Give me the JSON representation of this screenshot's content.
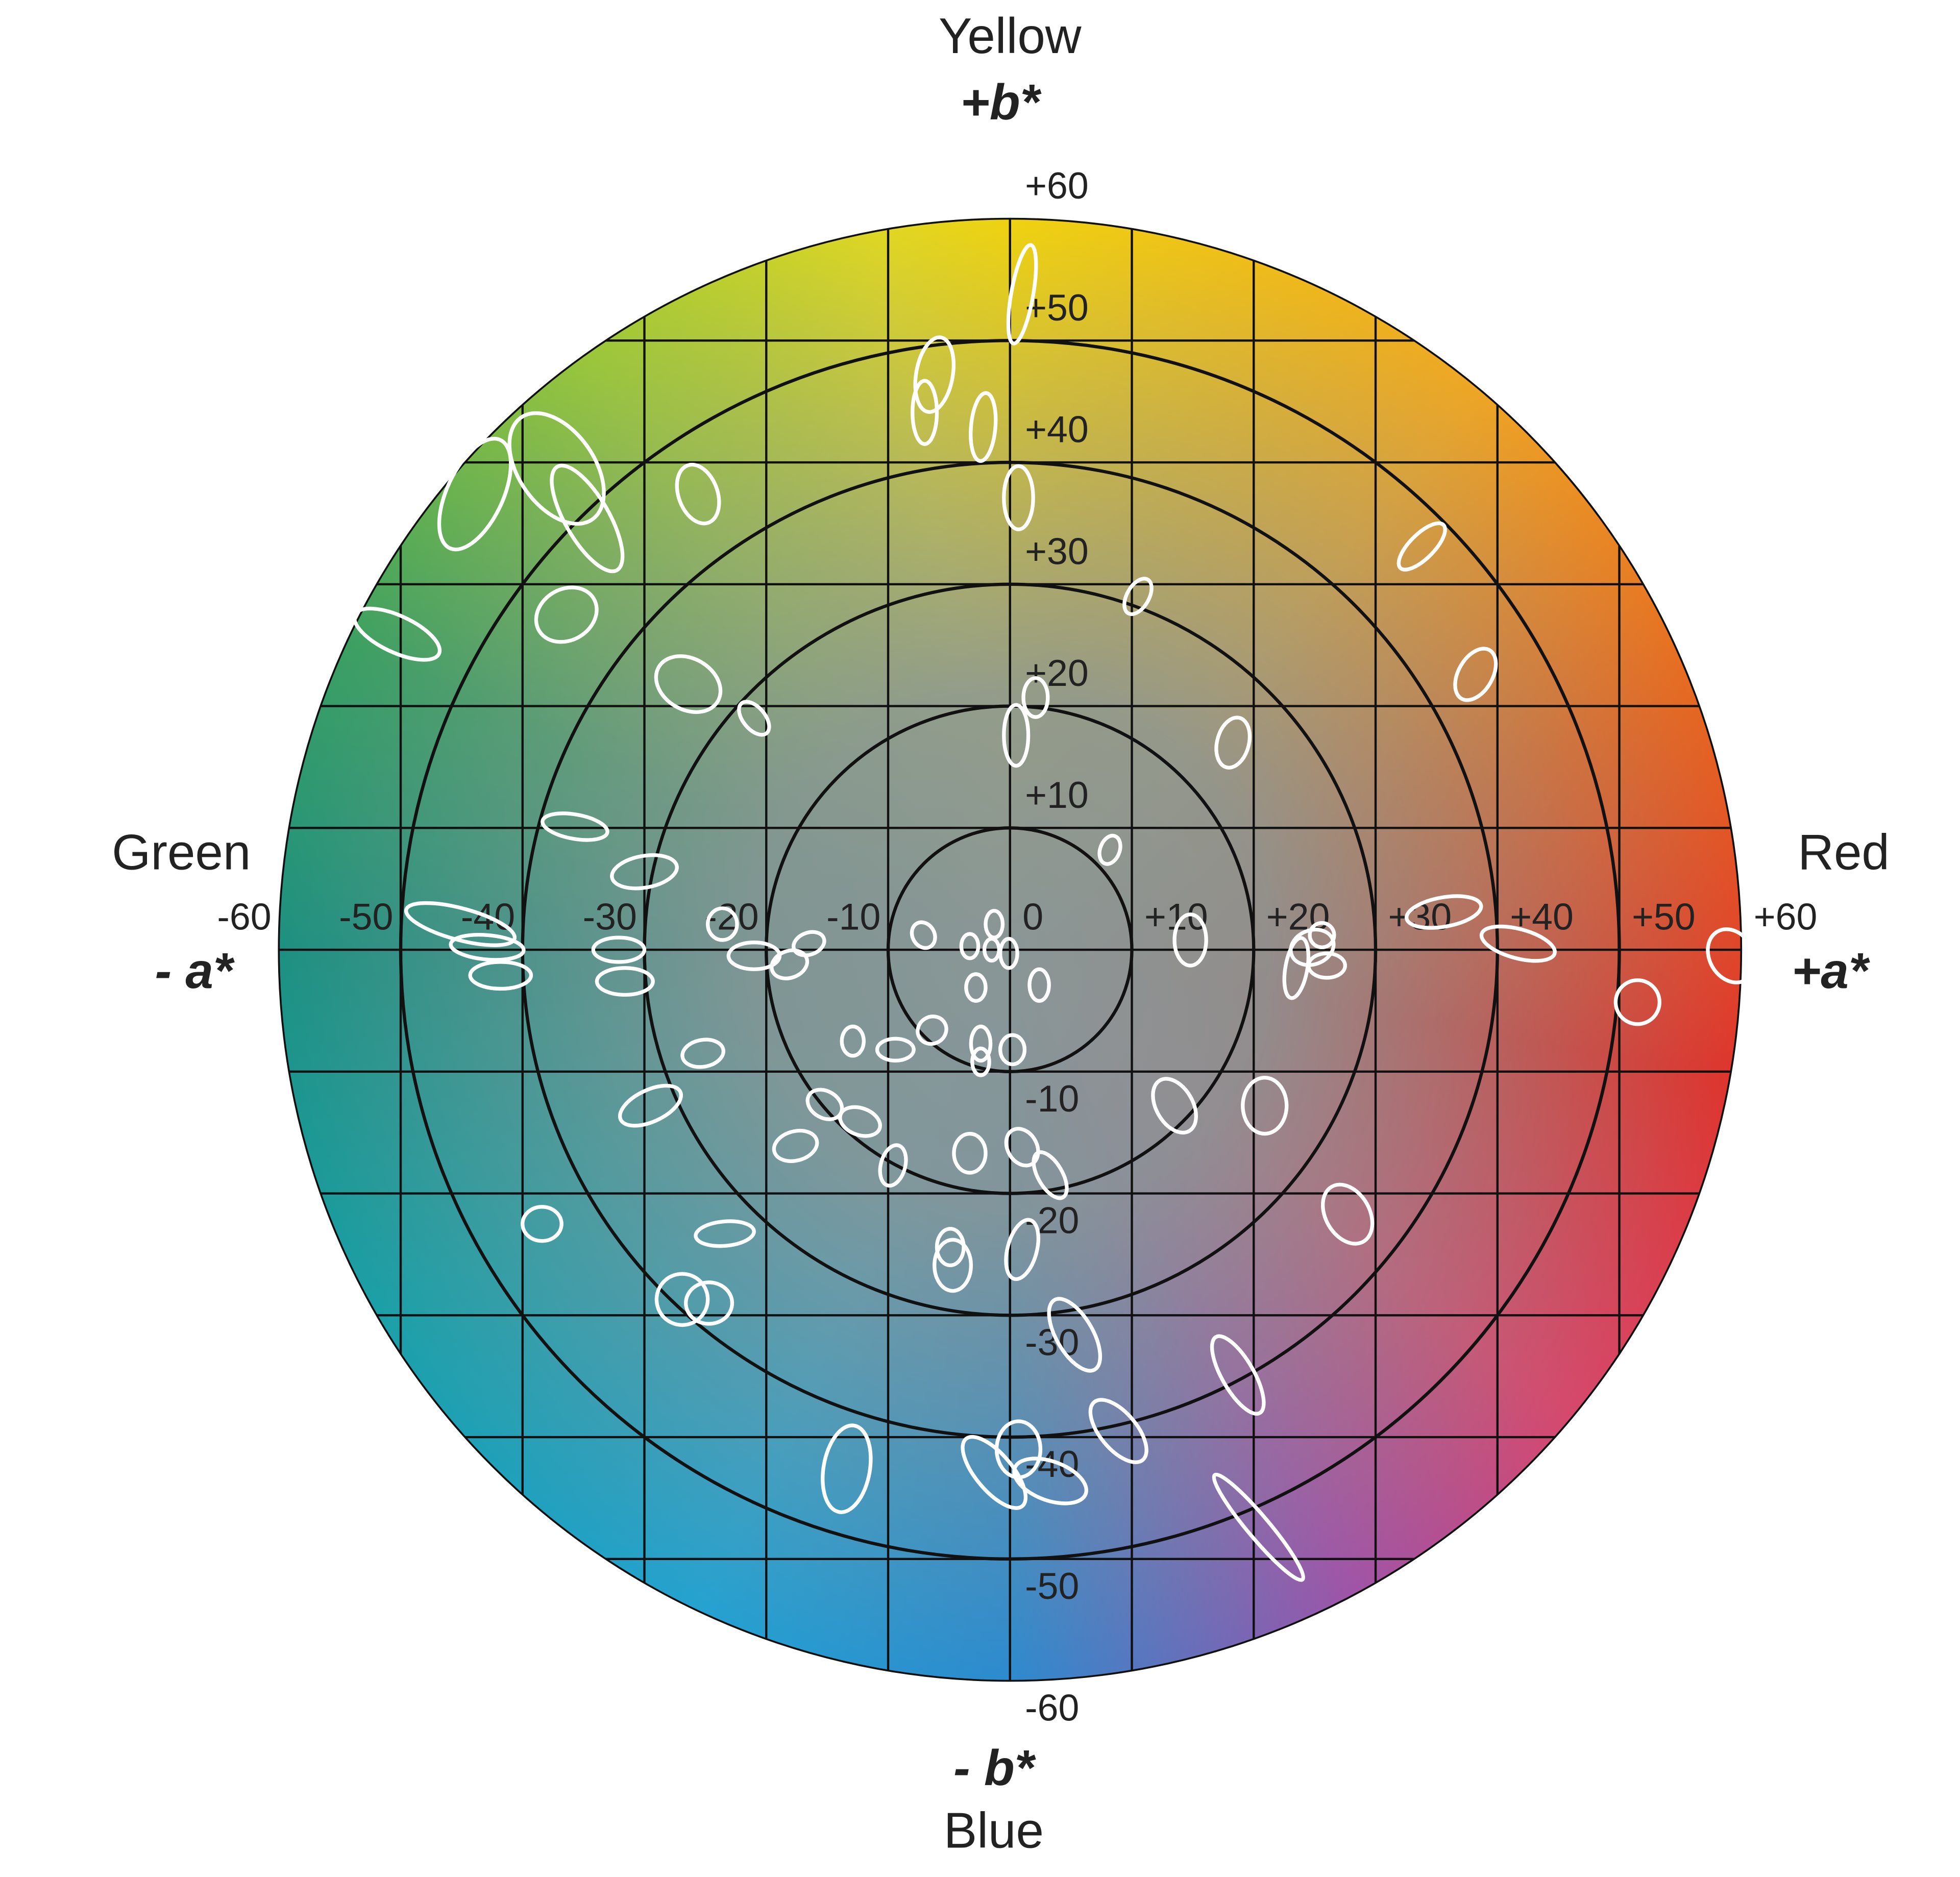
{
  "chart_data": {
    "type": "ellipse",
    "axis_labels": {
      "yellow": "Yellow",
      "plus_b": "+b*",
      "green": "Green",
      "minus_a": "- a*",
      "red": "Red",
      "plus_a": "+a*",
      "minus_b": "- b*",
      "blue": "Blue"
    },
    "xlim": [
      -60,
      60
    ],
    "ylim": [
      -60,
      60
    ],
    "xticks": [
      -60,
      -50,
      -40,
      -30,
      -20,
      -10,
      0,
      {
        "value": 10,
        "label": "+10"
      },
      {
        "value": 20,
        "label": "+20"
      },
      {
        "value": 30,
        "label": "+30"
      },
      {
        "value": 40,
        "label": "+40"
      },
      {
        "value": 50,
        "label": "+50"
      },
      {
        "value": 60,
        "label": "+60"
      }
    ],
    "yticks": [
      {
        "value": 60,
        "label": "+60"
      },
      {
        "value": 50,
        "label": "+50"
      },
      {
        "value": 40,
        "label": "+40"
      },
      {
        "value": 30,
        "label": "+30"
      },
      {
        "value": 20,
        "label": "+20"
      },
      {
        "value": 10,
        "label": "+10"
      },
      -10,
      -20,
      -30,
      -40,
      -50,
      -60
    ],
    "grid": true,
    "color": "#ffffff",
    "ellipses": [
      {
        "a": 1.0,
        "b": 53.8,
        "rx": 0.9,
        "ry": 4.1,
        "angle": 10
      },
      {
        "a": -6.2,
        "b": 47.2,
        "rx": 1.5,
        "ry": 3.1,
        "angle": 10
      },
      {
        "a": -7.0,
        "b": 44.1,
        "rx": 1.0,
        "ry": 2.6,
        "angle": 0
      },
      {
        "a": -2.2,
        "b": 42.9,
        "rx": 1.0,
        "ry": 2.8,
        "angle": 5
      },
      {
        "a": 0.7,
        "b": 37.1,
        "rx": 1.2,
        "ry": 2.6,
        "angle": 0
      },
      {
        "a": -25.6,
        "b": 37.4,
        "rx": 1.6,
        "ry": 2.5,
        "angle": -20
      },
      {
        "a": -37.2,
        "b": 39.5,
        "rx": 3.1,
        "ry": 5.1,
        "angle": -35
      },
      {
        "a": -43.9,
        "b": 37.4,
        "rx": 2.3,
        "ry": 4.9,
        "angle": 25
      },
      {
        "a": -34.7,
        "b": 35.4,
        "rx": 1.8,
        "ry": 4.9,
        "angle": -30
      },
      {
        "a": -36.4,
        "b": 27.5,
        "rx": 2.6,
        "ry": 2.1,
        "angle": -30
      },
      {
        "a": -50.3,
        "b": 25.9,
        "rx": 3.8,
        "ry": 1.5,
        "angle": 25
      },
      {
        "a": -26.4,
        "b": 21.8,
        "rx": 2.8,
        "ry": 2.1,
        "angle": 30
      },
      {
        "a": -21.0,
        "b": 19.0,
        "rx": 0.9,
        "ry": 1.6,
        "angle": -40
      },
      {
        "a": 10.5,
        "b": 29.0,
        "rx": 0.9,
        "ry": 1.6,
        "angle": 30
      },
      {
        "a": 33.8,
        "b": 33.1,
        "rx": 1.0,
        "ry": 2.5,
        "angle": 45
      },
      {
        "a": 38.2,
        "b": 22.6,
        "rx": 1.4,
        "ry": 2.3,
        "angle": 30
      },
      {
        "a": 18.3,
        "b": 17.0,
        "rx": 1.3,
        "ry": 2.1,
        "angle": 15
      },
      {
        "a": 2.1,
        "b": 20.7,
        "rx": 1.0,
        "ry": 1.6,
        "angle": 0
      },
      {
        "a": 0.5,
        "b": 17.6,
        "rx": 1.0,
        "ry": 2.5,
        "angle": 0
      },
      {
        "a": 8.2,
        "b": 8.2,
        "rx": 0.8,
        "ry": 1.2,
        "angle": 20
      },
      {
        "a": -35.7,
        "b": 10.1,
        "rx": 2.7,
        "ry": 1.0,
        "angle": 10
      },
      {
        "a": -30.0,
        "b": 6.4,
        "rx": 2.7,
        "ry": 1.3,
        "angle": -10
      },
      {
        "a": -45.1,
        "b": 2.1,
        "rx": 4.6,
        "ry": 1.3,
        "angle": 15
      },
      {
        "a": -42.9,
        "b": 0.2,
        "rx": 3.0,
        "ry": 1.0,
        "angle": 5
      },
      {
        "a": -41.8,
        "b": -2.1,
        "rx": 2.5,
        "ry": 1.1,
        "angle": 0
      },
      {
        "a": -32.1,
        "b": 0.0,
        "rx": 2.1,
        "ry": 1.0,
        "angle": 0
      },
      {
        "a": -31.6,
        "b": -2.6,
        "rx": 2.3,
        "ry": 1.1,
        "angle": 0
      },
      {
        "a": -23.6,
        "b": 2.1,
        "rx": 1.2,
        "ry": 1.3,
        "angle": 0
      },
      {
        "a": -21.0,
        "b": -0.5,
        "rx": 2.1,
        "ry": 1.1,
        "angle": 0
      },
      {
        "a": -18.1,
        "b": -1.2,
        "rx": 1.5,
        "ry": 1.1,
        "angle": -20
      },
      {
        "a": -16.5,
        "b": 0.5,
        "rx": 1.3,
        "ry": 0.9,
        "angle": -20
      },
      {
        "a": -7.1,
        "b": 1.2,
        "rx": 0.9,
        "ry": 1.1,
        "angle": -30
      },
      {
        "a": -3.3,
        "b": 0.3,
        "rx": 0.7,
        "ry": 1.0,
        "angle": 0
      },
      {
        "a": -1.3,
        "b": 2.1,
        "rx": 0.7,
        "ry": 1.1,
        "angle": 0
      },
      {
        "a": -1.5,
        "b": 0.0,
        "rx": 0.6,
        "ry": 0.9,
        "angle": 0
      },
      {
        "a": -0.1,
        "b": -0.3,
        "rx": 0.7,
        "ry": 1.2,
        "angle": 0
      },
      {
        "a": -2.8,
        "b": -3.1,
        "rx": 0.8,
        "ry": 1.1,
        "angle": 0
      },
      {
        "a": 2.4,
        "b": -2.9,
        "rx": 0.8,
        "ry": 1.3,
        "angle": 0
      },
      {
        "a": 14.8,
        "b": 0.8,
        "rx": 1.3,
        "ry": 2.1,
        "angle": 0
      },
      {
        "a": 23.5,
        "b": -1.5,
        "rx": 0.9,
        "ry": 2.5,
        "angle": 10
      },
      {
        "a": 24.8,
        "b": 0.2,
        "rx": 1.8,
        "ry": 1.4,
        "angle": -20
      },
      {
        "a": 26.0,
        "b": -1.3,
        "rx": 1.5,
        "ry": 1.0,
        "angle": 0
      },
      {
        "a": 25.6,
        "b": 1.2,
        "rx": 1.0,
        "ry": 1.0,
        "angle": 0
      },
      {
        "a": 35.6,
        "b": 3.1,
        "rx": 3.1,
        "ry": 1.2,
        "angle": -10
      },
      {
        "a": 41.7,
        "b": 0.5,
        "rx": 3.1,
        "ry": 1.2,
        "angle": 15
      },
      {
        "a": 59.2,
        "b": -0.5,
        "rx": 1.8,
        "ry": 2.3,
        "angle": -30
      },
      {
        "a": 51.5,
        "b": -4.3,
        "rx": 1.8,
        "ry": 1.8,
        "angle": 0
      },
      {
        "a": -25.2,
        "b": -8.5,
        "rx": 1.7,
        "ry": 1.1,
        "angle": -10
      },
      {
        "a": -29.5,
        "b": -12.8,
        "rx": 2.7,
        "ry": 1.3,
        "angle": -25
      },
      {
        "a": -12.9,
        "b": -7.5,
        "rx": 0.9,
        "ry": 1.2,
        "angle": 0
      },
      {
        "a": -9.4,
        "b": -8.2,
        "rx": 1.5,
        "ry": 0.9,
        "angle": 0
      },
      {
        "a": -6.4,
        "b": -6.6,
        "rx": 1.2,
        "ry": 1.1,
        "angle": -30
      },
      {
        "a": -2.4,
        "b": -7.7,
        "rx": 0.8,
        "ry": 1.4,
        "angle": 0
      },
      {
        "a": -2.4,
        "b": -9.2,
        "rx": 0.7,
        "ry": 1.1,
        "angle": 0
      },
      {
        "a": 0.2,
        "b": -8.2,
        "rx": 1.0,
        "ry": 1.2,
        "angle": 0
      },
      {
        "a": -15.2,
        "b": -12.7,
        "rx": 1.5,
        "ry": 1.1,
        "angle": 30
      },
      {
        "a": -12.3,
        "b": -14.1,
        "rx": 1.7,
        "ry": 1.1,
        "angle": 20
      },
      {
        "a": -17.6,
        "b": -16.1,
        "rx": 1.8,
        "ry": 1.2,
        "angle": -15
      },
      {
        "a": -9.6,
        "b": -17.7,
        "rx": 1.0,
        "ry": 1.7,
        "angle": 15
      },
      {
        "a": -3.3,
        "b": -16.7,
        "rx": 1.3,
        "ry": 1.6,
        "angle": 0
      },
      {
        "a": 1.0,
        "b": -16.2,
        "rx": 1.2,
        "ry": 1.6,
        "angle": -30
      },
      {
        "a": 3.3,
        "b": -18.5,
        "rx": 1.0,
        "ry": 2.1,
        "angle": -30
      },
      {
        "a": 13.5,
        "b": -12.8,
        "rx": 1.5,
        "ry": 2.4,
        "angle": -30
      },
      {
        "a": 20.9,
        "b": -12.8,
        "rx": 1.8,
        "ry": 2.3,
        "angle": 0
      },
      {
        "a": 27.7,
        "b": -21.7,
        "rx": 1.8,
        "ry": 2.6,
        "angle": -30
      },
      {
        "a": -38.4,
        "b": -22.5,
        "rx": 1.6,
        "ry": 1.4,
        "angle": 0
      },
      {
        "a": -23.4,
        "b": -23.3,
        "rx": 2.4,
        "ry": 1.0,
        "angle": -5
      },
      {
        "a": -26.9,
        "b": -28.7,
        "rx": 2.1,
        "ry": 2.1,
        "angle": 0
      },
      {
        "a": -24.7,
        "b": -29.0,
        "rx": 1.9,
        "ry": 1.7,
        "angle": 0
      },
      {
        "a": -4.9,
        "b": -24.4,
        "rx": 1.1,
        "ry": 1.5,
        "angle": 0
      },
      {
        "a": -4.7,
        "b": -25.9,
        "rx": 1.5,
        "ry": 2.1,
        "angle": 0
      },
      {
        "a": 1.0,
        "b": -24.6,
        "rx": 1.2,
        "ry": 2.5,
        "angle": 15
      },
      {
        "a": 5.3,
        "b": -31.6,
        "rx": 1.5,
        "ry": 3.3,
        "angle": -30
      },
      {
        "a": 18.7,
        "b": -34.9,
        "rx": 1.3,
        "ry": 3.6,
        "angle": -30
      },
      {
        "a": 8.9,
        "b": -39.5,
        "rx": 1.5,
        "ry": 3.1,
        "angle": -40
      },
      {
        "a": -13.4,
        "b": -42.6,
        "rx": 1.9,
        "ry": 3.6,
        "angle": 10
      },
      {
        "a": -1.3,
        "b": -42.9,
        "rx": 1.5,
        "ry": 3.6,
        "angle": -40
      },
      {
        "a": 0.7,
        "b": -41.0,
        "rx": 1.8,
        "ry": 2.3,
        "angle": 0
      },
      {
        "a": 3.3,
        "b": -43.6,
        "rx": 3.1,
        "ry": 1.6,
        "angle": 20
      },
      {
        "a": 20.4,
        "b": -47.4,
        "rx": 0.9,
        "ry": 5.6,
        "angle": -40
      }
    ]
  }
}
